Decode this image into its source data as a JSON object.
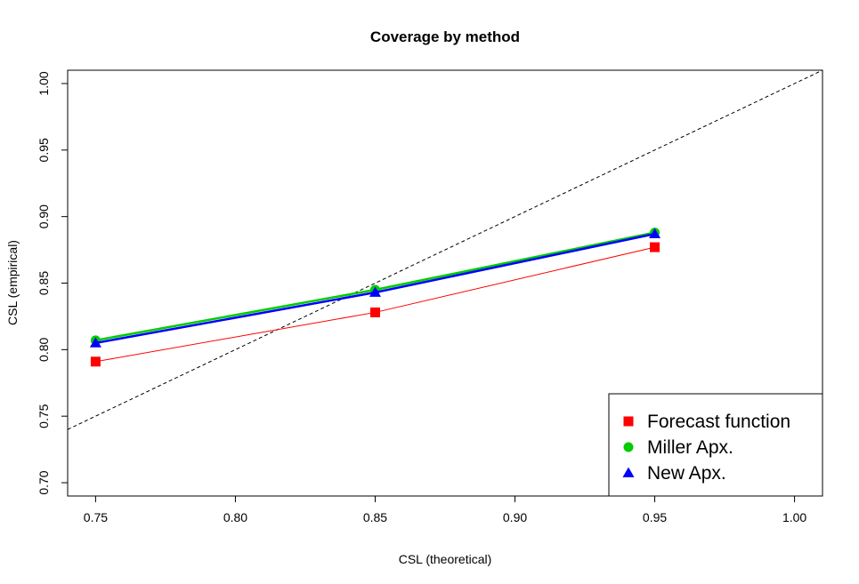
{
  "chart_data": {
    "type": "line",
    "title": "Coverage by method",
    "xlabel": "CSL (theoretical)",
    "ylabel": "CSL (empirical)",
    "xlim": [
      0.74,
      1.01
    ],
    "ylim": [
      0.69,
      1.01
    ],
    "x_ticks": [
      "0.75",
      "0.80",
      "0.85",
      "0.90",
      "0.95",
      "1.00"
    ],
    "y_ticks": [
      "0.70",
      "0.75",
      "0.80",
      "0.85",
      "0.90",
      "0.95",
      "1.00"
    ],
    "x": [
      0.75,
      0.85,
      0.95
    ],
    "series": [
      {
        "name": "Forecast function",
        "values": [
          0.791,
          0.828,
          0.877
        ],
        "color": "#ff0000",
        "marker": "square",
        "line_width": 1
      },
      {
        "name": "Miller Apx.",
        "values": [
          0.807,
          0.845,
          0.888
        ],
        "color": "#00cc00",
        "marker": "circle",
        "line_width": 2.5
      },
      {
        "name": "New Apx.",
        "values": [
          0.805,
          0.843,
          0.887
        ],
        "color": "#0000ff",
        "marker": "triangle",
        "line_width": 2.5
      }
    ],
    "reference_line": {
      "type": "identity",
      "style": "dashed",
      "color": "#000000"
    },
    "legend_position": "bottom-right",
    "grid": false
  }
}
